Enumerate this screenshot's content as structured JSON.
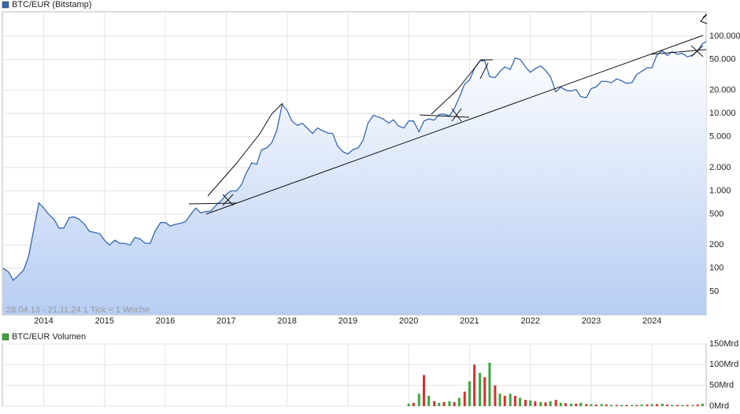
{
  "chart_data": [
    {
      "type": "area",
      "log_scale": true,
      "grid": true,
      "series": [
        {
          "name": "BTC/EUR (Bitstamp)",
          "color": "#3566b8",
          "x": [
            2013.33,
            2013.42,
            2013.5,
            2013.58,
            2013.67,
            2013.75,
            2013.83,
            2013.92,
            2014,
            2014.08,
            2014.17,
            2014.25,
            2014.33,
            2014.42,
            2014.5,
            2014.58,
            2014.67,
            2014.75,
            2014.83,
            2014.92,
            2015,
            2015.08,
            2015.17,
            2015.25,
            2015.33,
            2015.42,
            2015.5,
            2015.58,
            2015.67,
            2015.75,
            2015.83,
            2015.92,
            2016,
            2016.08,
            2016.17,
            2016.25,
            2016.33,
            2016.42,
            2016.5,
            2016.58,
            2016.67,
            2016.75,
            2016.83,
            2016.92,
            2017,
            2017.08,
            2017.17,
            2017.25,
            2017.33,
            2017.42,
            2017.5,
            2017.58,
            2017.67,
            2017.75,
            2017.83,
            2017.92,
            2018,
            2018.08,
            2018.17,
            2018.25,
            2018.33,
            2018.42,
            2018.5,
            2018.58,
            2018.67,
            2018.75,
            2018.83,
            2018.92,
            2019,
            2019.08,
            2019.17,
            2019.25,
            2019.33,
            2019.42,
            2019.5,
            2019.58,
            2019.67,
            2019.75,
            2019.83,
            2019.92,
            2020,
            2020.08,
            2020.17,
            2020.25,
            2020.33,
            2020.42,
            2020.5,
            2020.58,
            2020.67,
            2020.75,
            2020.83,
            2020.92,
            2021,
            2021.08,
            2021.17,
            2021.25,
            2021.33,
            2021.42,
            2021.5,
            2021.58,
            2021.67,
            2021.75,
            2021.83,
            2021.92,
            2022,
            2022.08,
            2022.17,
            2022.25,
            2022.33,
            2022.42,
            2022.5,
            2022.58,
            2022.67,
            2022.75,
            2022.83,
            2022.92,
            2023,
            2023.08,
            2023.17,
            2023.25,
            2023.33,
            2023.42,
            2023.5,
            2023.58,
            2023.67,
            2023.75,
            2023.83,
            2023.92,
            2024,
            2024.08,
            2024.17,
            2024.25,
            2024.33,
            2024.42,
            2024.5,
            2024.58,
            2024.67,
            2024.75,
            2024.83,
            2024.89
          ],
          "values": [
            100,
            90,
            70,
            80,
            95,
            140,
            300,
            700,
            600,
            500,
            430,
            330,
            330,
            450,
            460,
            430,
            370,
            300,
            290,
            280,
            230,
            200,
            230,
            210,
            210,
            200,
            250,
            240,
            210,
            210,
            300,
            390,
            390,
            350,
            370,
            380,
            400,
            500,
            600,
            520,
            540,
            550,
            650,
            750,
            900,
            1000,
            1000,
            1200,
            1700,
            2300,
            2200,
            3400,
            3600,
            4200,
            6000,
            13000,
            11000,
            8000,
            7000,
            7500,
            6500,
            5500,
            6500,
            6000,
            5600,
            5500,
            3800,
            3200,
            3000,
            3400,
            3600,
            4500,
            7500,
            9500,
            9000,
            8500,
            7500,
            8300,
            6900,
            6500,
            8000,
            8000,
            5800,
            8000,
            8500,
            8200,
            9700,
            9800,
            9300,
            11500,
            16000,
            24000,
            27000,
            38000,
            48000,
            48000,
            30000,
            29000,
            35000,
            40000,
            37000,
            52000,
            50000,
            40000,
            34000,
            38000,
            41000,
            36000,
            30000,
            19000,
            22000,
            20000,
            19500,
            20500,
            16500,
            16000,
            21000,
            22000,
            26000,
            26000,
            25000,
            28000,
            26500,
            24500,
            25000,
            32000,
            35000,
            39000,
            39000,
            57000,
            65000,
            56000,
            63000,
            58000,
            60000,
            54000,
            57000,
            65000,
            80000,
            85000
          ]
        }
      ],
      "xlim": [
        2013.32,
        2024.89
      ],
      "xticks": [
        2014,
        2015,
        2016,
        2017,
        2018,
        2019,
        2020,
        2021,
        2022,
        2023,
        2024
      ],
      "ylim": [
        25,
        206000
      ],
      "yticks": [
        {
          "value": 100000,
          "label": "100.000"
        },
        {
          "value": 50000,
          "label": "50.000"
        },
        {
          "value": 20000,
          "label": "20.000"
        },
        {
          "value": 10000,
          "label": "10.000"
        },
        {
          "value": 5000,
          "label": "5.000"
        },
        {
          "value": 2000,
          "label": "2.000"
        },
        {
          "value": 1000,
          "label": "1.000"
        },
        500,
        200,
        100,
        50
      ],
      "annotation": "28.04.13 - 21.11.24   1 Tick = 1 Woche"
    },
    {
      "type": "bar",
      "grid": true,
      "series": [
        {
          "name": "BTC/EUR Volumen",
          "color": "#3aa83a",
          "colors": [
            "#3aa83a",
            "#d9302c"
          ],
          "x": [
            2020,
            2020.08,
            2020.17,
            2020.25,
            2020.33,
            2020.42,
            2020.5,
            2020.58,
            2020.67,
            2020.75,
            2020.83,
            2020.92,
            2021,
            2021.08,
            2021.17,
            2021.25,
            2021.33,
            2021.42,
            2021.5,
            2021.58,
            2021.67,
            2021.75,
            2021.83,
            2021.92,
            2022,
            2022.08,
            2022.17,
            2022.25,
            2022.33,
            2022.42,
            2022.5,
            2022.58,
            2022.67,
            2022.75,
            2022.83,
            2022.92,
            2023,
            2023.08,
            2023.17,
            2023.25,
            2023.33,
            2023.42,
            2023.5,
            2023.58,
            2023.67,
            2023.75,
            2023.83,
            2023.92,
            2024,
            2024.08,
            2024.17,
            2024.25,
            2024.33,
            2024.42,
            2024.5,
            2024.58,
            2024.67,
            2024.75,
            2024.83
          ],
          "values": [
            6,
            8,
            30,
            75,
            25,
            12,
            8,
            10,
            12,
            10,
            20,
            35,
            60,
            100,
            80,
            70,
            105,
            50,
            30,
            25,
            30,
            25,
            20,
            15,
            14,
            12,
            10,
            9,
            12,
            15,
            8,
            7,
            6,
            6,
            8,
            5,
            5,
            4,
            5,
            4,
            3,
            3,
            3,
            3,
            3,
            3,
            4,
            4,
            5,
            5,
            6,
            4,
            3,
            3,
            3,
            3,
            3,
            4,
            6
          ]
        }
      ],
      "xlim": [
        2013.32,
        2024.89
      ],
      "ylim": [
        0,
        150
      ],
      "yticks": [
        {
          "value": 150,
          "label": "150Mrd"
        },
        {
          "value": 100,
          "label": "100Mrd"
        },
        {
          "value": 50,
          "label": "50Mrd"
        },
        {
          "value": 0,
          "label": "0Mrd"
        }
      ]
    }
  ]
}
